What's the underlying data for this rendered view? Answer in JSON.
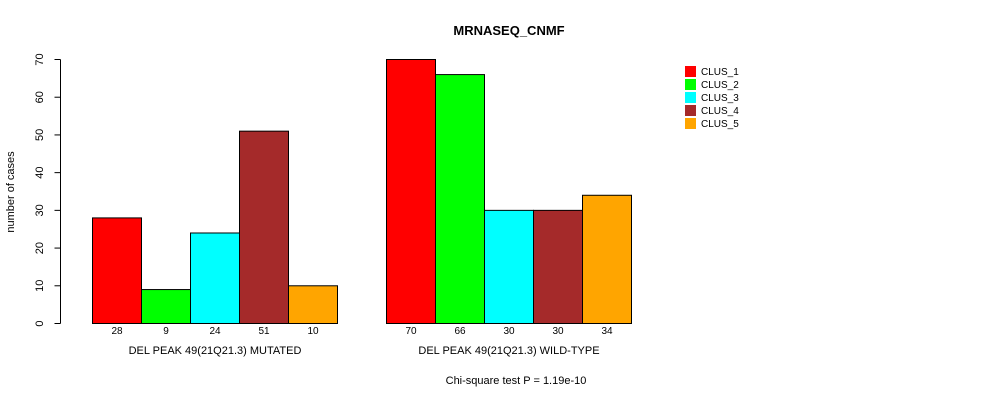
{
  "chart_data": {
    "type": "bar",
    "title": "MRNASEQ_CNMF",
    "ylabel": "number of cases",
    "ylim": [
      0,
      70
    ],
    "yticks": [
      0,
      10,
      20,
      30,
      40,
      50,
      60,
      70
    ],
    "groups": [
      "DEL PEAK 49(21Q21.3) MUTATED",
      "DEL PEAK 49(21Q21.3) WILD-TYPE"
    ],
    "series": [
      {
        "name": "CLUS_1",
        "color": "#ff0000",
        "values": [
          28,
          70
        ]
      },
      {
        "name": "CLUS_2",
        "color": "#00ff00",
        "values": [
          9,
          66
        ]
      },
      {
        "name": "CLUS_3",
        "color": "#00ffff",
        "values": [
          24,
          30
        ]
      },
      {
        "name": "CLUS_4",
        "color": "#a52a2a",
        "values": [
          51,
          30
        ]
      },
      {
        "name": "CLUS_5",
        "color": "#ffa500",
        "values": [
          10,
          34
        ]
      }
    ],
    "legend_position": "top-right",
    "grid": false,
    "footnote": "Chi-square test P = 1.19e-10"
  }
}
